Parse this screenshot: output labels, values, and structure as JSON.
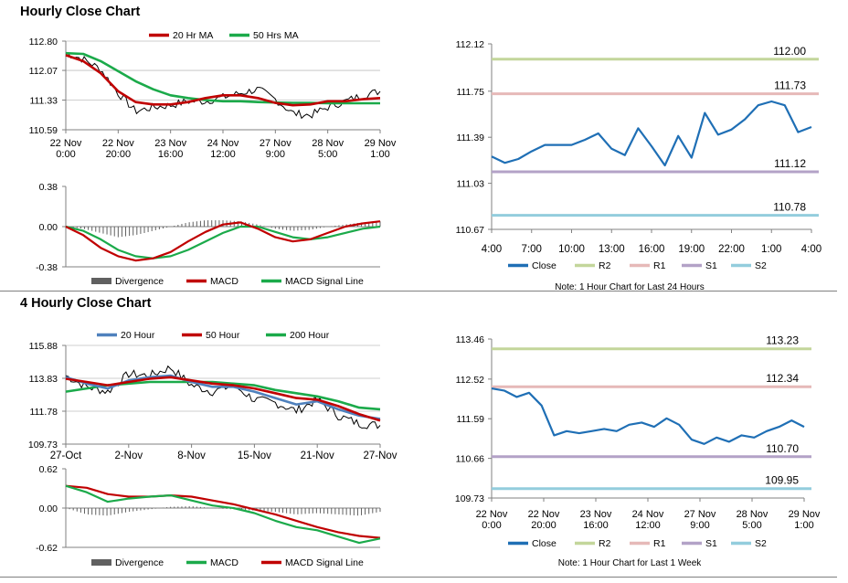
{
  "sections": [
    {
      "title": "Hourly Close Chart"
    },
    {
      "title": "4 Hourly Close Chart"
    }
  ],
  "colors": {
    "red": "#C00000",
    "green": "#1BAA4A",
    "blue": "#1F6FB5",
    "light_blue": "#4F81BD",
    "bar_gray": "#606060",
    "grid": "#BFBFBF",
    "r2": "#C3D69B",
    "r1": "#E6B9B8",
    "s1": "#B3A2C7",
    "s2": "#93CDDD"
  },
  "chart_data": [
    {
      "id": "hourly_price",
      "type": "line",
      "x_labels": [
        "22 Nov\n0:00",
        "22 Nov\n20:00",
        "23 Nov\n16:00",
        "24 Nov\n12:00",
        "27 Nov\n9:00",
        "28 Nov\n5:00",
        "29 Nov\n1:00"
      ],
      "y_ticks": [
        "112.80",
        "112.07",
        "111.33",
        "110.59"
      ],
      "ylim": [
        110.59,
        112.8
      ],
      "series": [
        {
          "name": "20 Hr MA",
          "color": "#C00000",
          "values": [
            112.45,
            112.3,
            112.0,
            111.55,
            111.28,
            111.22,
            111.22,
            111.28,
            111.38,
            111.45,
            111.45,
            111.38,
            111.26,
            111.2,
            111.22,
            111.3,
            111.3,
            111.35,
            111.38
          ]
        },
        {
          "name": "50 Hrs MA",
          "color": "#1BAA4A",
          "values": [
            112.5,
            112.48,
            112.3,
            112.05,
            111.8,
            111.6,
            111.45,
            111.38,
            111.33,
            111.3,
            111.3,
            111.28,
            111.27,
            111.26,
            111.26,
            111.25,
            111.25,
            111.25,
            111.25
          ]
        },
        {
          "name": "Close",
          "color": "#000000",
          "values": [
            112.5,
            112.35,
            112.1,
            111.5,
            111.05,
            111.15,
            111.2,
            111.3,
            111.3,
            111.4,
            111.5,
            111.6,
            111.35,
            111.0,
            110.95,
            111.15,
            111.3,
            111.45,
            111.55
          ]
        }
      ]
    },
    {
      "id": "hourly_macd",
      "type": "line",
      "y_ticks": [
        "0.38",
        "0.00",
        "-0.38"
      ],
      "ylim": [
        -0.38,
        0.38
      ],
      "series": [
        {
          "name": "Divergence",
          "color": "#606060",
          "values": [
            0.0,
            -0.02,
            -0.06,
            -0.1,
            -0.08,
            -0.04,
            0.0,
            0.04,
            0.06,
            0.06,
            0.05,
            0.02,
            -0.02,
            -0.04,
            -0.03,
            0.0,
            0.02,
            0.04,
            0.05
          ]
        },
        {
          "name": "MACD",
          "color": "#C00000",
          "values": [
            0.0,
            -0.08,
            -0.2,
            -0.28,
            -0.32,
            -0.3,
            -0.24,
            -0.14,
            -0.05,
            0.02,
            0.04,
            -0.02,
            -0.1,
            -0.14,
            -0.12,
            -0.06,
            0.0,
            0.03,
            0.05
          ]
        },
        {
          "name": "MACD Signal Line",
          "color": "#1BAA4A",
          "values": [
            0.0,
            -0.04,
            -0.12,
            -0.22,
            -0.28,
            -0.3,
            -0.28,
            -0.22,
            -0.14,
            -0.06,
            0.0,
            0.0,
            -0.05,
            -0.1,
            -0.12,
            -0.1,
            -0.06,
            -0.02,
            0.0
          ]
        }
      ]
    },
    {
      "id": "hourly_levels",
      "type": "line",
      "x_labels": [
        "4:00",
        "7:00",
        "10:00",
        "13:00",
        "16:00",
        "19:00",
        "22:00",
        "1:00",
        "4:00"
      ],
      "y_ticks": [
        "112.12",
        "111.75",
        "111.39",
        "111.03",
        "110.67"
      ],
      "ylim": [
        110.67,
        112.12
      ],
      "levels": [
        {
          "name": "R2",
          "value": 112.0,
          "label": "112.00",
          "color": "#C3D69B"
        },
        {
          "name": "R1",
          "value": 111.73,
          "label": "111.73",
          "color": "#E6B9B8"
        },
        {
          "name": "S1",
          "value": 111.12,
          "label": "111.12",
          "color": "#B3A2C7"
        },
        {
          "name": "S2",
          "value": 110.78,
          "label": "110.78",
          "color": "#93CDDD"
        }
      ],
      "series": [
        {
          "name": "Close",
          "color": "#1F6FB5",
          "values": [
            111.24,
            111.19,
            111.22,
            111.28,
            111.33,
            111.33,
            111.33,
            111.37,
            111.42,
            111.3,
            111.25,
            111.46,
            111.32,
            111.17,
            111.4,
            111.23,
            111.58,
            111.41,
            111.45,
            111.53,
            111.64,
            111.67,
            111.64,
            111.43,
            111.47
          ]
        }
      ],
      "note": "Note: 1 Hour Chart for Last 24 Hours"
    },
    {
      "id": "four_hourly_price",
      "type": "line",
      "x_labels": [
        "27-Oct",
        "2-Nov",
        "8-Nov",
        "15-Nov",
        "21-Nov",
        "27-Nov"
      ],
      "y_ticks": [
        "115.88",
        "113.83",
        "111.78",
        "109.73"
      ],
      "ylim": [
        109.73,
        115.88
      ],
      "series": [
        {
          "name": "20 Hour",
          "color": "#4F81BD",
          "values": [
            113.9,
            113.5,
            113.2,
            113.7,
            113.9,
            114.0,
            113.6,
            113.3,
            113.3,
            113.0,
            112.6,
            112.2,
            112.4,
            111.9,
            111.5,
            111.3
          ]
        },
        {
          "name": "50 Hour",
          "color": "#C00000",
          "values": [
            113.8,
            113.6,
            113.4,
            113.6,
            113.8,
            113.9,
            113.7,
            113.5,
            113.4,
            113.2,
            112.9,
            112.6,
            112.5,
            112.1,
            111.6,
            111.2
          ]
        },
        {
          "name": "200 Hour",
          "color": "#1BAA4A",
          "values": [
            113.0,
            113.2,
            113.4,
            113.5,
            113.6,
            113.6,
            113.6,
            113.6,
            113.5,
            113.4,
            113.1,
            112.9,
            112.7,
            112.4,
            112.0,
            111.9
          ]
        },
        {
          "name": "Close",
          "color": "#000000",
          "values": [
            114.0,
            113.3,
            113.0,
            114.1,
            114.0,
            114.5,
            113.4,
            113.0,
            113.4,
            112.5,
            112.3,
            111.8,
            112.5,
            111.5,
            111.0,
            110.9
          ]
        }
      ]
    },
    {
      "id": "four_hourly_macd",
      "type": "line",
      "y_ticks": [
        "0.62",
        "0.00",
        "-0.62"
      ],
      "ylim": [
        -0.62,
        0.62
      ],
      "series": [
        {
          "name": "Divergence",
          "color": "#606060",
          "values": [
            0.0,
            -0.1,
            -0.12,
            -0.06,
            -0.02,
            0.02,
            0.03,
            0.0,
            -0.02,
            -0.04,
            -0.06,
            -0.1,
            -0.08,
            -0.1,
            -0.12,
            -0.06
          ]
        },
        {
          "name": "MACD",
          "color": "#1BAA4A",
          "values": [
            0.35,
            0.25,
            0.1,
            0.15,
            0.18,
            0.2,
            0.12,
            0.04,
            0.0,
            -0.08,
            -0.2,
            -0.3,
            -0.35,
            -0.45,
            -0.55,
            -0.48
          ]
        },
        {
          "name": "MACD Signal Line",
          "color": "#C00000",
          "values": [
            0.35,
            0.32,
            0.22,
            0.18,
            0.18,
            0.2,
            0.18,
            0.12,
            0.06,
            -0.02,
            -0.1,
            -0.2,
            -0.3,
            -0.38,
            -0.44,
            -0.47
          ]
        }
      ]
    },
    {
      "id": "four_hourly_levels",
      "type": "line",
      "x_labels": [
        "22 Nov\n0:00",
        "22 Nov\n20:00",
        "23 Nov\n16:00",
        "24 Nov\n12:00",
        "27 Nov\n9:00",
        "28 Nov\n5:00",
        "29 Nov\n1:00"
      ],
      "y_ticks": [
        "113.46",
        "112.52",
        "111.59",
        "110.66",
        "109.73"
      ],
      "ylim": [
        109.73,
        113.46
      ],
      "levels": [
        {
          "name": "R2",
          "value": 113.23,
          "label": "113.23",
          "color": "#C3D69B"
        },
        {
          "name": "R1",
          "value": 112.34,
          "label": "112.34",
          "color": "#E6B9B8"
        },
        {
          "name": "S1",
          "value": 110.7,
          "label": "110.70",
          "color": "#B3A2C7"
        },
        {
          "name": "S2",
          "value": 109.95,
          "label": "109.95",
          "color": "#93CDDD"
        }
      ],
      "series": [
        {
          "name": "Close",
          "color": "#1F6FB5",
          "values": [
            112.3,
            112.25,
            112.1,
            112.2,
            111.9,
            111.2,
            111.3,
            111.25,
            111.3,
            111.35,
            111.3,
            111.45,
            111.5,
            111.4,
            111.6,
            111.45,
            111.1,
            111.0,
            111.15,
            111.05,
            111.2,
            111.15,
            111.3,
            111.4,
            111.55,
            111.4
          ]
        }
      ],
      "note": "Note: 1 Hour Chart for Last 1 Week"
    }
  ]
}
